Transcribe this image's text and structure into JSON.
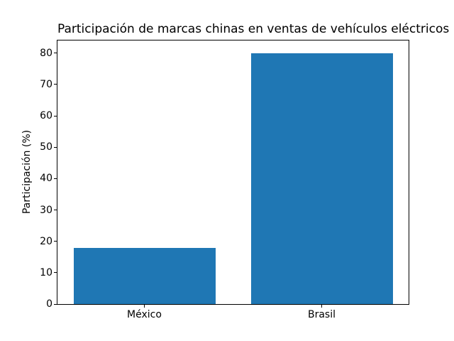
{
  "chart_data": {
    "type": "bar",
    "title": "Participación de marcas chinas en ventas de vehículos eléctricos",
    "categories": [
      "México",
      "Brasil"
    ],
    "values": [
      18,
      80
    ],
    "xlabel": "",
    "ylabel": "Participación (%)",
    "yticks": [
      0,
      10,
      20,
      30,
      40,
      50,
      60,
      70,
      80
    ],
    "ylim": [
      0,
      84
    ],
    "bar_color": "#1f77b4",
    "grid": false,
    "legend": "none"
  }
}
